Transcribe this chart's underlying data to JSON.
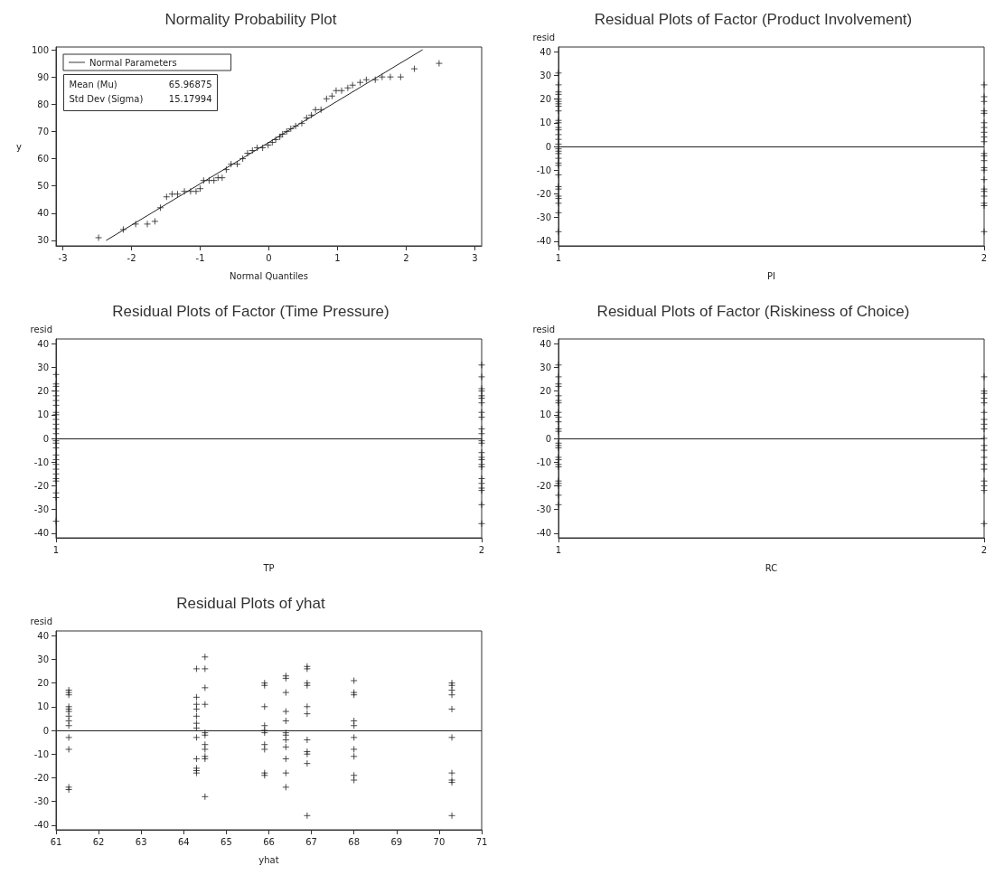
{
  "chart_data": [
    {
      "type": "scatter",
      "title": "Normality Probability Plot",
      "xlabel": "Normal Quantiles",
      "ylabel": "y",
      "xlim": [
        -3.1,
        3.1
      ],
      "xticks": [
        -3,
        -2,
        -1,
        0,
        1,
        2,
        3
      ],
      "ylim": [
        28,
        101
      ],
      "yticks": [
        30,
        40,
        50,
        60,
        70,
        80,
        90,
        100
      ],
      "marker": "cross",
      "legend": "top left",
      "annotations": [
        "Mean (Mu)",
        "65.96875",
        "Std Dev (Sigma)",
        "15.17994"
      ],
      "series": [
        {
          "color": "#222222",
          "x": [
            -2.48,
            -2.12,
            -1.94,
            -1.77,
            -1.66,
            -1.58,
            -1.49,
            -1.41,
            -1.33,
            -1.23,
            -1.14,
            -1.06,
            -1.0,
            -0.95,
            -0.87,
            -0.8,
            -0.74,
            -0.68,
            -0.62,
            -0.55,
            -0.46,
            -0.38,
            -0.31,
            -0.24,
            -0.17,
            -0.09,
            -0.01,
            0.05,
            0.1,
            0.16,
            0.2,
            0.26,
            0.32,
            0.39,
            0.48,
            0.55,
            0.62,
            0.68,
            0.76,
            0.84,
            0.92,
            0.98,
            1.06,
            1.15,
            1.22,
            1.33,
            1.42,
            1.55,
            1.65,
            1.77,
            1.92,
            2.12,
            2.48
          ],
          "values": [
            31,
            34,
            36,
            36,
            37,
            42,
            46,
            47,
            47,
            48,
            48,
            48,
            49,
            52,
            52,
            52,
            53,
            53,
            56,
            58,
            58,
            60,
            62,
            63,
            64,
            64,
            65,
            66,
            67,
            68,
            69,
            70,
            71,
            72,
            73,
            75,
            76,
            78,
            78,
            82,
            83,
            85,
            85,
            86,
            87,
            88,
            89,
            89,
            90,
            90,
            90,
            93,
            95
          ]
        },
        {
          "type": "line",
          "name": "Normal Parameters",
          "marker": "none",
          "color": "#222222",
          "x": [
            -2.37,
            2.24
          ],
          "values": [
            30,
            100
          ]
        }
      ]
    },
    {
      "type": "scatter",
      "title": "Residual Plots of Factor (Product Involvement)",
      "xlabel": "PI",
      "ylabel": "resid",
      "xlim": [
        1,
        2
      ],
      "xticks": [
        1,
        2
      ],
      "ylim": [
        -42,
        42
      ],
      "yticks": [
        -40,
        -30,
        -20,
        -10,
        0,
        10,
        20,
        30,
        40
      ],
      "marker": "cross",
      "ref_lines": [
        {
          "axis": "y",
          "value": 0,
          "color": "#222222"
        }
      ],
      "series": [
        {
          "color": "#222222",
          "x": [
            1,
            1,
            1,
            1,
            1,
            1,
            1,
            1,
            1,
            1,
            1,
            1,
            1,
            1,
            1,
            1,
            1,
            1,
            1,
            1,
            1,
            1,
            1,
            1,
            1,
            1,
            1,
            1,
            1,
            1
          ],
          "values": [
            31,
            26,
            23,
            22,
            20,
            19,
            18,
            17,
            15,
            11,
            10,
            8,
            7,
            5,
            3,
            1,
            -1,
            -2,
            -3,
            -5,
            -7,
            -8,
            -12,
            -17,
            -18,
            -21,
            -22,
            -24,
            -28,
            -36
          ]
        },
        {
          "color": "#222222",
          "x": [
            2,
            2,
            2,
            2,
            2,
            2,
            2,
            2,
            2,
            2,
            2,
            2,
            2,
            2,
            2,
            2,
            2,
            2,
            2,
            2,
            2,
            2
          ],
          "values": [
            26,
            21,
            19,
            15,
            14,
            10,
            8,
            6,
            4,
            2,
            -3,
            -4,
            -6,
            -9,
            -10,
            -14,
            -18,
            -19,
            -21,
            -24,
            -25,
            -36
          ]
        }
      ]
    },
    {
      "type": "scatter",
      "title": "Residual Plots of Factor (Time Pressure)",
      "xlabel": "TP",
      "ylabel": "resid",
      "xlim": [
        1,
        2
      ],
      "xticks": [
        1,
        2
      ],
      "ylim": [
        -42,
        42
      ],
      "yticks": [
        -40,
        -30,
        -20,
        -10,
        0,
        10,
        20,
        30,
        40
      ],
      "marker": "cross",
      "ref_lines": [
        {
          "axis": "y",
          "value": 0,
          "color": "#222222"
        }
      ],
      "series": [
        {
          "color": "#222222",
          "x": [
            1,
            1,
            1,
            1,
            1,
            1,
            1,
            1,
            1,
            1,
            1,
            1,
            1,
            1,
            1,
            1,
            1,
            1,
            1,
            1,
            1,
            1,
            1,
            1,
            1,
            1
          ],
          "values": [
            27,
            23,
            22,
            20,
            18,
            16,
            14,
            11,
            10,
            8,
            6,
            4,
            2,
            -1,
            -2,
            -4,
            -7,
            -9,
            -11,
            -13,
            -15,
            -17,
            -18,
            -23,
            -25,
            -35
          ]
        },
        {
          "color": "#222222",
          "x": [
            2,
            2,
            2,
            2,
            2,
            2,
            2,
            2,
            2,
            2,
            2,
            2,
            2,
            2,
            2,
            2,
            2,
            2,
            2,
            2,
            2,
            2,
            2,
            2
          ],
          "values": [
            31,
            26,
            21,
            20,
            18,
            17,
            15,
            11,
            9,
            4,
            2,
            -1,
            -2,
            -6,
            -8,
            -9,
            -11,
            -12,
            -17,
            -19,
            -21,
            -22,
            -28,
            -36
          ]
        }
      ]
    },
    {
      "type": "scatter",
      "title": "Residual Plots of Factor (Riskiness of Choice)",
      "xlabel": "RC",
      "ylabel": "resid",
      "xlim": [
        1,
        2
      ],
      "xticks": [
        1,
        2
      ],
      "ylim": [
        -42,
        42
      ],
      "yticks": [
        -40,
        -30,
        -20,
        -10,
        0,
        10,
        20,
        30,
        40
      ],
      "marker": "cross",
      "ref_lines": [
        {
          "axis": "y",
          "value": 0,
          "color": "#222222"
        }
      ],
      "series": [
        {
          "color": "#222222",
          "x": [
            1,
            1,
            1,
            1,
            1,
            1,
            1,
            1,
            1,
            1,
            1,
            1,
            1,
            1,
            1,
            1,
            1,
            1,
            1,
            1,
            1,
            1,
            1,
            1
          ],
          "values": [
            31,
            26,
            23,
            22,
            18,
            16,
            15,
            11,
            9,
            7,
            4,
            3,
            -2,
            -3,
            -4,
            -8,
            -9,
            -11,
            -12,
            -18,
            -19,
            -20,
            -24,
            -28
          ]
        },
        {
          "color": "#222222",
          "x": [
            2,
            2,
            2,
            2,
            2,
            2,
            2,
            2,
            2,
            2,
            2,
            2,
            2,
            2,
            2,
            2,
            2,
            2,
            2
          ],
          "values": [
            26,
            20,
            19,
            17,
            15,
            11,
            8,
            6,
            4,
            0,
            -3,
            -5,
            -8,
            -11,
            -13,
            -18,
            -20,
            -22,
            -36
          ]
        }
      ]
    },
    {
      "type": "scatter",
      "title": "Residual Plots of yhat",
      "xlabel": "yhat",
      "ylabel": "resid",
      "xlim": [
        61,
        71
      ],
      "xticks": [
        61,
        62,
        63,
        64,
        65,
        66,
        67,
        68,
        69,
        70,
        71
      ],
      "ylim": [
        -42,
        42
      ],
      "yticks": [
        -40,
        -30,
        -20,
        -10,
        0,
        10,
        20,
        30,
        40
      ],
      "marker": "cross",
      "ref_lines": [
        {
          "axis": "y",
          "value": 0,
          "color": "#222222"
        }
      ],
      "series": [
        {
          "color": "#222222",
          "x": [
            61.3,
            61.3,
            61.3,
            61.3,
            61.3,
            61.3,
            61.3,
            61.3,
            61.3,
            61.3,
            61.3,
            61.3,
            61.3
          ],
          "values": [
            17,
            16,
            15,
            10,
            9,
            8,
            6,
            4,
            2,
            -3,
            -8,
            -24,
            -25
          ]
        },
        {
          "color": "#222222",
          "x": [
            64.3,
            64.3,
            64.3,
            64.3,
            64.3,
            64.3,
            64.3,
            64.3,
            64.3,
            64.3,
            64.3,
            64.3
          ],
          "values": [
            26,
            14,
            11,
            9,
            6,
            3,
            1,
            -3,
            -12,
            -16,
            -17,
            -18
          ]
        },
        {
          "color": "#222222",
          "x": [
            64.5,
            64.5,
            64.5,
            64.5,
            64.5,
            64.5,
            64.5,
            64.5,
            64.5,
            64.5,
            64.5
          ],
          "values": [
            31,
            26,
            18,
            11,
            -1,
            -2,
            -6,
            -8,
            -11,
            -12,
            -28
          ]
        },
        {
          "color": "#222222",
          "x": [
            65.9,
            65.9,
            65.9,
            65.9,
            65.9,
            65.9,
            65.9,
            65.9,
            65.9,
            65.9
          ],
          "values": [
            20,
            19,
            10,
            2,
            0,
            -1,
            -6,
            -8,
            -18,
            -19
          ]
        },
        {
          "color": "#222222",
          "x": [
            66.4,
            66.4,
            66.4,
            66.4,
            66.4,
            66.4,
            66.4,
            66.4,
            66.4,
            66.4,
            66.4,
            66.4
          ],
          "values": [
            23,
            22,
            16,
            8,
            4,
            -1,
            -2,
            -4,
            -7,
            -12,
            -18,
            -24
          ]
        },
        {
          "color": "#222222",
          "x": [
            66.9,
            66.9,
            66.9,
            66.9,
            66.9,
            66.9,
            66.9,
            66.9,
            66.9,
            66.9,
            66.9
          ],
          "values": [
            27,
            26,
            20,
            19,
            10,
            7,
            -4,
            -9,
            -10,
            -14,
            -36
          ]
        },
        {
          "color": "#222222",
          "x": [
            68.0,
            68.0,
            68.0,
            68.0,
            68.0,
            68.0,
            68.0,
            68.0,
            68.0,
            68.0
          ],
          "values": [
            21,
            16,
            15,
            4,
            2,
            -3,
            -8,
            -11,
            -19,
            -21
          ]
        },
        {
          "color": "#222222",
          "x": [
            70.3,
            70.3,
            70.3,
            70.3,
            70.3,
            70.3,
            70.3,
            70.3,
            70.3,
            70.3
          ],
          "values": [
            20,
            19,
            17,
            15,
            9,
            -3,
            -18,
            -21,
            -22,
            -36
          ]
        }
      ]
    }
  ]
}
